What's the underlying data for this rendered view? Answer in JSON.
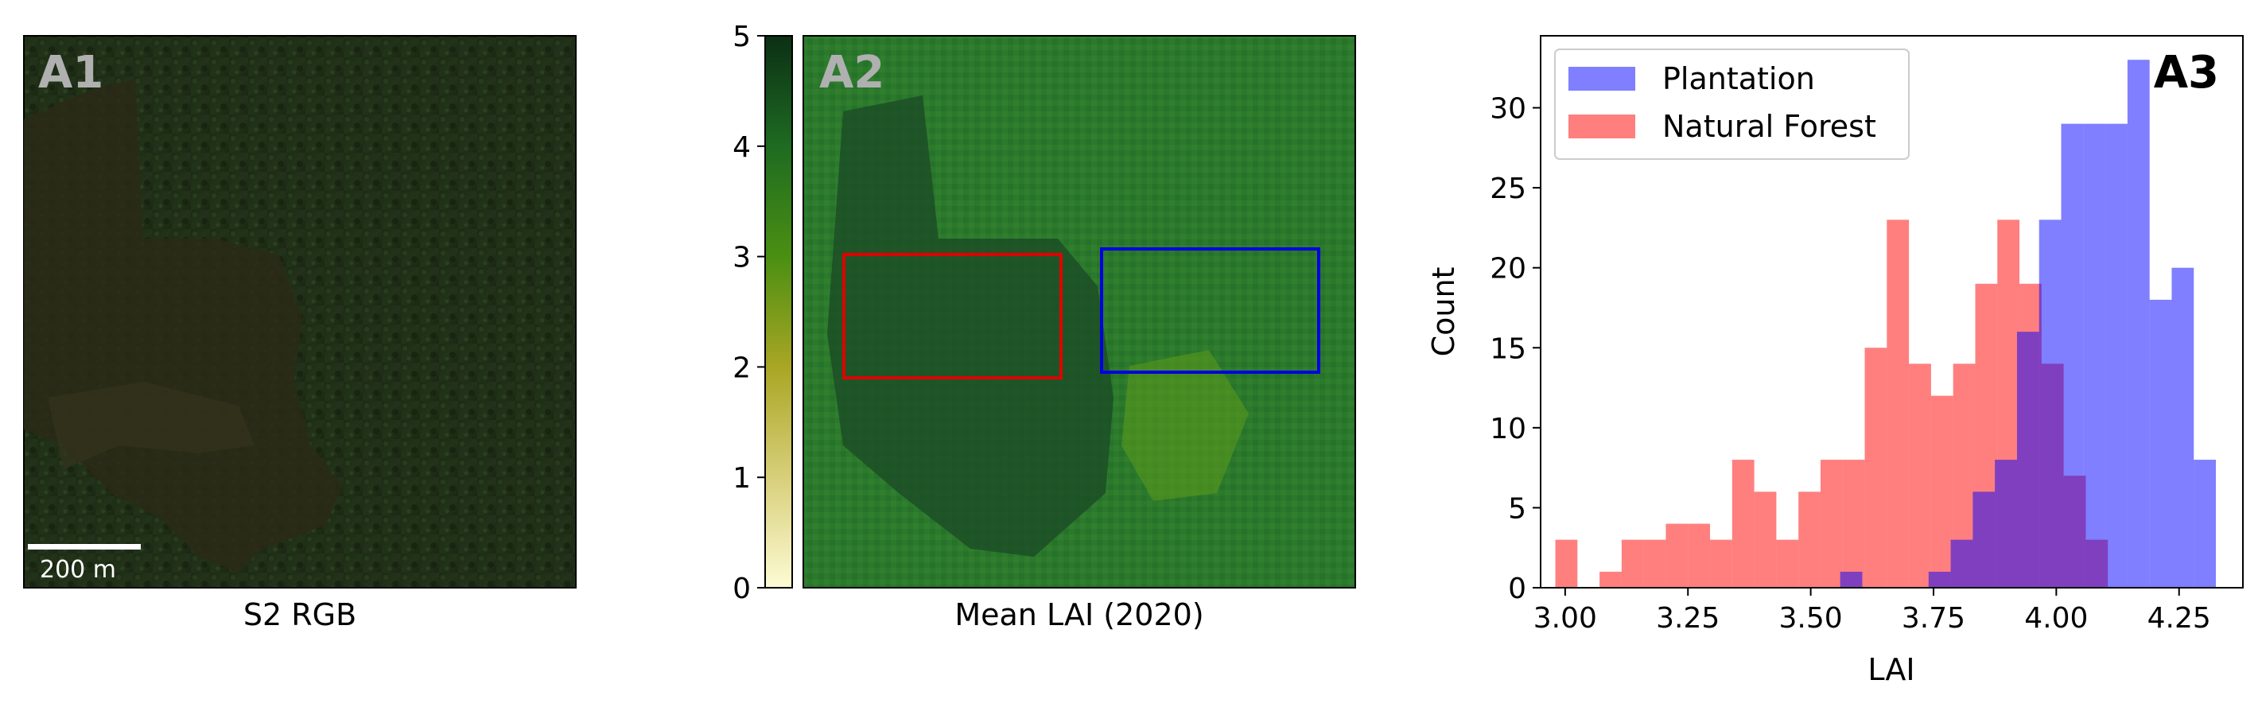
{
  "panels": {
    "a1": {
      "title": "A1",
      "caption": "S2 RGB",
      "scalebar_label": "200 m"
    },
    "a2": {
      "title": "A2",
      "caption": "Mean LAI (2020)",
      "colorbar_ticks": [
        "0",
        "1",
        "2",
        "3",
        "4",
        "5"
      ],
      "colorbar_range": [
        0,
        5
      ],
      "box_colors": {
        "natural_forest": "#e00000",
        "plantation": "#0000e0"
      }
    },
    "a3": {
      "title": "A3"
    }
  },
  "chart_data": {
    "type": "bar",
    "xlabel": "LAI",
    "ylabel": "Count",
    "xlim": [
      2.95,
      4.38
    ],
    "ylim": [
      0,
      34.5
    ],
    "x_ticks": [
      "3.00",
      "3.25",
      "3.50",
      "3.75",
      "4.00",
      "4.25"
    ],
    "y_ticks": [
      "0",
      "5",
      "10",
      "15",
      "20",
      "25",
      "30"
    ],
    "legend_position": "top-left",
    "series": [
      {
        "name": "Natural Forest",
        "color": "#ff0000",
        "alpha": 0.5,
        "bins": [
          {
            "x0": 2.98,
            "x1": 3.025,
            "count": 3
          },
          {
            "x0": 3.025,
            "x1": 3.07,
            "count": 0
          },
          {
            "x0": 3.07,
            "x1": 3.115,
            "count": 1
          },
          {
            "x0": 3.115,
            "x1": 3.16,
            "count": 3
          },
          {
            "x0": 3.16,
            "x1": 3.205,
            "count": 3
          },
          {
            "x0": 3.205,
            "x1": 3.25,
            "count": 4
          },
          {
            "x0": 3.25,
            "x1": 3.295,
            "count": 4
          },
          {
            "x0": 3.295,
            "x1": 3.34,
            "count": 3
          },
          {
            "x0": 3.34,
            "x1": 3.385,
            "count": 8
          },
          {
            "x0": 3.385,
            "x1": 3.43,
            "count": 6
          },
          {
            "x0": 3.43,
            "x1": 3.475,
            "count": 3
          },
          {
            "x0": 3.475,
            "x1": 3.52,
            "count": 6
          },
          {
            "x0": 3.52,
            "x1": 3.565,
            "count": 8
          },
          {
            "x0": 3.565,
            "x1": 3.61,
            "count": 8
          },
          {
            "x0": 3.61,
            "x1": 3.655,
            "count": 15
          },
          {
            "x0": 3.655,
            "x1": 3.7,
            "count": 23
          },
          {
            "x0": 3.7,
            "x1": 3.745,
            "count": 14
          },
          {
            "x0": 3.745,
            "x1": 3.79,
            "count": 12
          },
          {
            "x0": 3.79,
            "x1": 3.835,
            "count": 14
          },
          {
            "x0": 3.835,
            "x1": 3.88,
            "count": 19
          },
          {
            "x0": 3.88,
            "x1": 3.925,
            "count": 23
          },
          {
            "x0": 3.925,
            "x1": 3.97,
            "count": 19
          },
          {
            "x0": 3.97,
            "x1": 4.015,
            "count": 14
          },
          {
            "x0": 4.015,
            "x1": 4.06,
            "count": 7
          },
          {
            "x0": 4.06,
            "x1": 4.105,
            "count": 3
          }
        ]
      },
      {
        "name": "Plantation",
        "color": "#0000ff",
        "alpha": 0.5,
        "bins": [
          {
            "x0": 3.56,
            "x1": 3.605,
            "count": 1
          },
          {
            "x0": 3.605,
            "x1": 3.65,
            "count": 0
          },
          {
            "x0": 3.65,
            "x1": 3.695,
            "count": 0
          },
          {
            "x0": 3.695,
            "x1": 3.74,
            "count": 0
          },
          {
            "x0": 3.74,
            "x1": 3.785,
            "count": 1
          },
          {
            "x0": 3.785,
            "x1": 3.83,
            "count": 3
          },
          {
            "x0": 3.83,
            "x1": 3.875,
            "count": 6
          },
          {
            "x0": 3.875,
            "x1": 3.92,
            "count": 8
          },
          {
            "x0": 3.92,
            "x1": 3.965,
            "count": 16
          },
          {
            "x0": 3.965,
            "x1": 4.01,
            "count": 23
          },
          {
            "x0": 4.01,
            "x1": 4.055,
            "count": 29
          },
          {
            "x0": 4.055,
            "x1": 4.1,
            "count": 29
          },
          {
            "x0": 4.1,
            "x1": 4.145,
            "count": 29
          },
          {
            "x0": 4.145,
            "x1": 4.19,
            "count": 33
          },
          {
            "x0": 4.19,
            "x1": 4.235,
            "count": 18
          },
          {
            "x0": 4.235,
            "x1": 4.28,
            "count": 20
          },
          {
            "x0": 4.28,
            "x1": 4.325,
            "count": 8
          }
        ]
      }
    ]
  }
}
